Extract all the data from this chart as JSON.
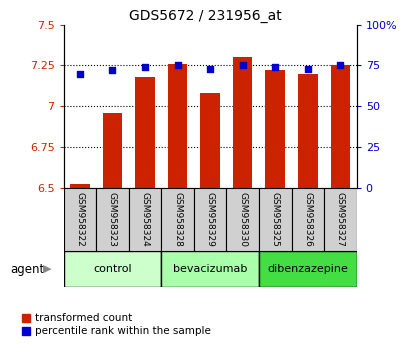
{
  "title": "GDS5672 / 231956_at",
  "samples": [
    "GSM958322",
    "GSM958323",
    "GSM958324",
    "GSM958328",
    "GSM958329",
    "GSM958330",
    "GSM958325",
    "GSM958326",
    "GSM958327"
  ],
  "red_values": [
    6.52,
    6.96,
    7.18,
    7.26,
    7.08,
    7.3,
    7.22,
    7.2,
    7.25
  ],
  "blue_values": [
    70,
    72,
    74,
    75,
    73,
    75,
    74,
    73,
    75
  ],
  "ylim_left": [
    6.5,
    7.5
  ],
  "ylim_right": [
    0,
    100
  ],
  "yticks_left": [
    6.5,
    6.75,
    7.0,
    7.25,
    7.5
  ],
  "yticks_right": [
    0,
    25,
    50,
    75,
    100
  ],
  "ytick_labels_left": [
    "6.5",
    "6.75",
    "7",
    "7.25",
    "7.5"
  ],
  "ytick_labels_right": [
    "0",
    "25",
    "50",
    "75",
    "100%"
  ],
  "groups": [
    {
      "label": "control",
      "indices": [
        0,
        1,
        2
      ],
      "color": "#ccffcc"
    },
    {
      "label": "bevacizumab",
      "indices": [
        3,
        4,
        5
      ],
      "color": "#aaffaa"
    },
    {
      "label": "dibenzazepine",
      "indices": [
        6,
        7,
        8
      ],
      "color": "#44dd44"
    }
  ],
  "bar_color": "#cc2200",
  "dot_color": "#0000cc",
  "bar_width": 0.6,
  "baseline": 6.5,
  "agent_label": "agent",
  "legend_red": "transformed count",
  "legend_blue": "percentile rank within the sample",
  "tick_color_left": "#cc2200",
  "tick_color_right": "#0000cc",
  "sample_box_color": "#d0d0d0",
  "fig_width": 4.1,
  "fig_height": 3.54,
  "dpi": 100
}
